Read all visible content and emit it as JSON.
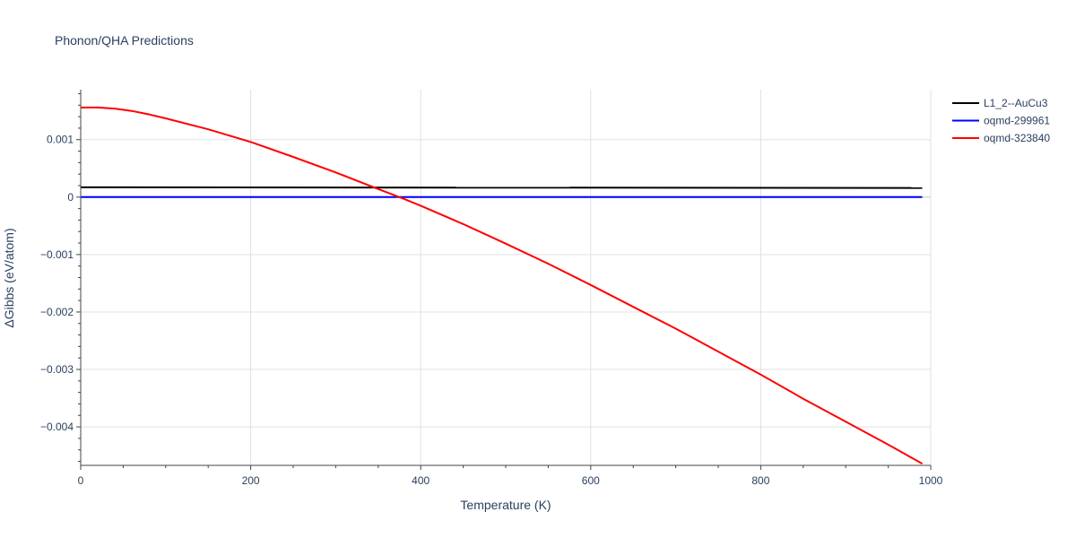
{
  "chart_data": {
    "type": "line",
    "title": "Phonon/QHA Predictions",
    "xlabel": "Temperature (K)",
    "ylabel": "ΔGibbs (eV/atom)",
    "xlim": [
      0,
      1000
    ],
    "ylim": [
      -0.00467,
      0.00187
    ],
    "xticks": [
      0,
      200,
      400,
      600,
      800,
      1000
    ],
    "xtick_labels": [
      "0",
      "200",
      "400",
      "600",
      "800",
      "1000"
    ],
    "yticks": [
      0.001,
      0,
      -0.001,
      -0.002,
      -0.003,
      -0.004
    ],
    "ytick_labels": [
      "0.001",
      "0",
      "−0.001",
      "−0.002",
      "−0.003",
      "−0.004"
    ],
    "grid": true,
    "legend_position": "top-right-outside",
    "series": [
      {
        "name": "L1_2--AuCu3",
        "color": "#000000",
        "x": [
          0,
          990
        ],
        "y": [
          0.00017,
          0.00016
        ]
      },
      {
        "name": "oqmd-299961",
        "color": "#0000ff",
        "x": [
          0,
          990
        ],
        "y": [
          0,
          0
        ]
      },
      {
        "name": "oqmd-323840",
        "color": "#ff0000",
        "x": [
          0,
          20,
          40,
          60,
          80,
          100,
          150,
          200,
          250,
          300,
          350,
          380,
          400,
          450,
          500,
          550,
          600,
          650,
          700,
          750,
          800,
          850,
          900,
          950,
          990
        ],
        "y": [
          0.00156,
          0.00156,
          0.00154,
          0.0015,
          0.00144,
          0.00137,
          0.00118,
          0.00096,
          0.0007,
          0.00043,
          0.00014,
          -3e-05,
          -0.00015,
          -0.00047,
          -0.00081,
          -0.00116,
          -0.00153,
          -0.00191,
          -0.00229,
          -0.00269,
          -0.00309,
          -0.00351,
          -0.00391,
          -0.00431,
          -0.00464
        ]
      }
    ]
  }
}
